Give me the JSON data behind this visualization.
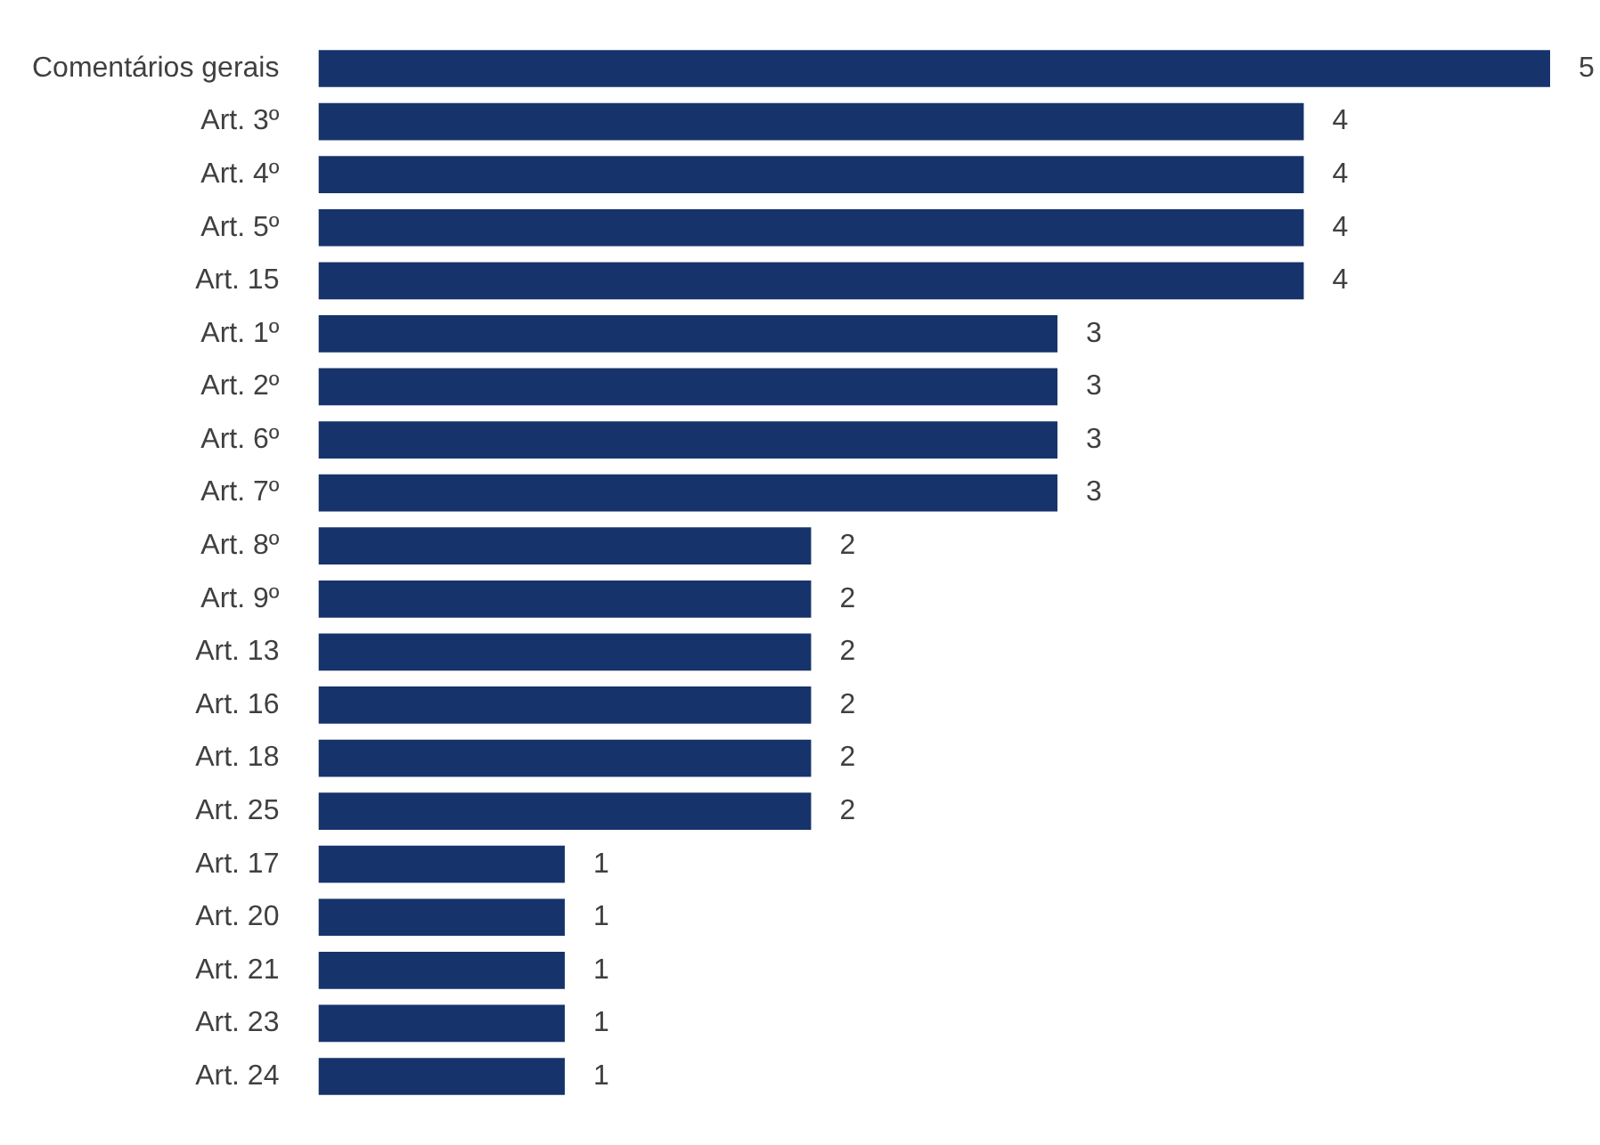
{
  "chart_data": {
    "type": "bar",
    "orientation": "horizontal",
    "categories": [
      "Comentários gerais",
      "Art. 3º",
      "Art. 4º",
      "Art. 5º",
      "Art. 15",
      "Art. 1º",
      "Art. 2º",
      "Art. 6º",
      "Art. 7º",
      "Art. 8º",
      "Art. 9º",
      "Art. 13",
      "Art. 16",
      "Art. 18",
      "Art. 25",
      "Art. 17",
      "Art. 20",
      "Art. 21",
      "Art. 23",
      "Art. 24"
    ],
    "values": [
      5,
      4,
      4,
      4,
      4,
      3,
      3,
      3,
      3,
      2,
      2,
      2,
      2,
      2,
      2,
      1,
      1,
      1,
      1,
      1
    ],
    "color": "#17336b",
    "xlim": [
      0,
      5
    ],
    "data_labels": true,
    "legend": false,
    "tick_labels": "y"
  }
}
